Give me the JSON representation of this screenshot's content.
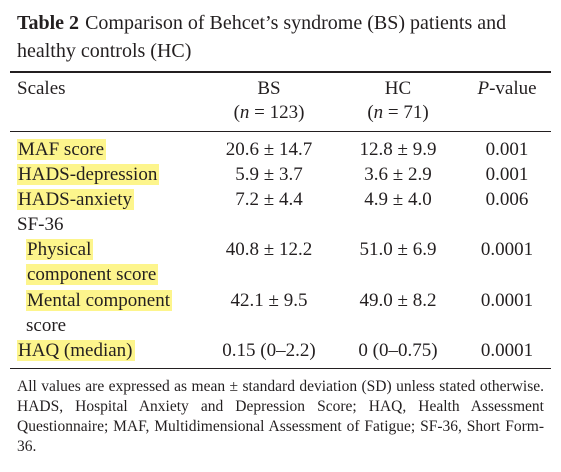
{
  "caption": {
    "table_number": "Table 2",
    "title": "Comparison of Behcet’s syndrome (BS) patients and healthy controls (HC)"
  },
  "header": {
    "scales": "Scales",
    "bs": "BS",
    "bs_n": "(n = 123)",
    "hc": "HC",
    "hc_n": "(n = 71)",
    "p_italic": "P",
    "p_rest": "-value"
  },
  "rows": [
    {
      "label": "MAF score",
      "bs": "20.6 ± 14.7",
      "hc": "12.8 ± 9.9",
      "p": "0.001"
    },
    {
      "label": "HADS-depression",
      "bs": "5.9 ± 3.7",
      "hc": "3.6 ± 2.9",
      "p": "0.001"
    },
    {
      "label": "HADS-anxiety",
      "bs": "7.2 ± 4.4",
      "hc": "4.9 ± 4.0",
      "p": "0.006"
    },
    {
      "label": "SF-36"
    },
    {
      "label_line1": "Physical",
      "label_line2": "component score",
      "bs": "40.8 ± 12.2",
      "hc": "51.0 ± 6.9",
      "p": "0.0001"
    },
    {
      "label_line1": "Mental component",
      "label_line2": "score",
      "bs": "42.1 ± 9.5",
      "hc": "49.0 ± 8.2",
      "p": "0.0001"
    },
    {
      "label": "HAQ (median)",
      "bs": "0.15 (0–2.2)",
      "hc": "0 (0–0.75)",
      "p": "0.0001"
    }
  ],
  "footnote": "All values are expressed as mean ± standard deviation (SD) unless stated otherwise. HADS, Hospital Anxiety and Depression Score; HAQ, Health Assessment Questionnaire; MAF, Multidimensional Assessment of Fatigue; SF-36, Short Form-36.",
  "colors": {
    "highlight": "#fdf58c",
    "text": "#231f20"
  }
}
